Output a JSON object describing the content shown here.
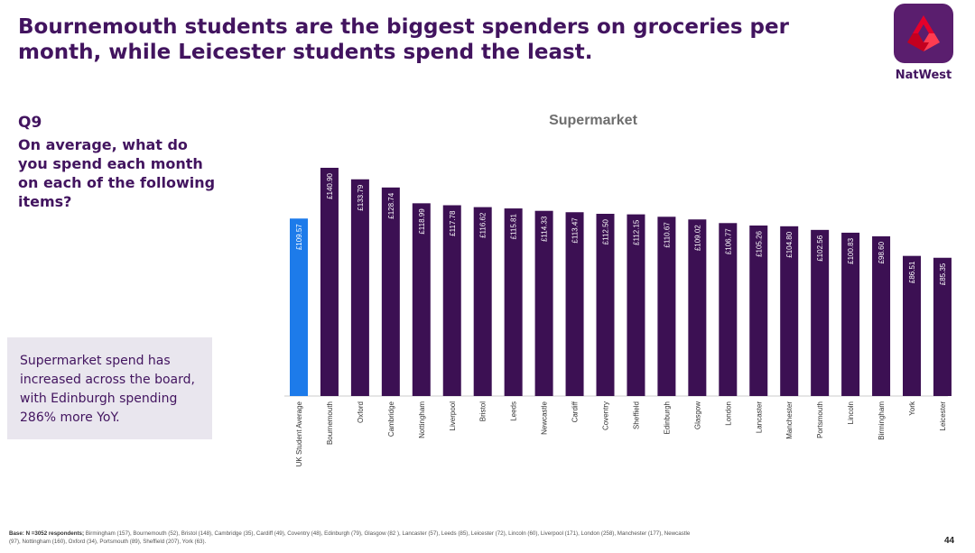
{
  "header": {
    "title": "Bournemouth students are the biggest spenders on groceries per month, while Leicester students spend the least.",
    "logo_text": "NatWest"
  },
  "question": {
    "number": "Q9",
    "text": "On average, what do you spend each month on each of the following items?"
  },
  "callout": {
    "text": "Supermarket spend has increased across the board, with Edinburgh spending 286% more YoY."
  },
  "colors": {
    "bar": "#3c1053",
    "highlight_bar": "#1d7bea",
    "text": "#42145f"
  },
  "chart_data": {
    "type": "bar",
    "title": "Supermarket",
    "xlabel": "",
    "ylabel": "",
    "ylim": [
      0,
      140.9
    ],
    "categories": [
      "UK Student Average",
      "Bournemouth",
      "Oxford",
      "Cambridge",
      "Nottingham",
      "Liverpool",
      "Bristol",
      "Leeds",
      "Newcastle",
      "Cardiff",
      "Coventry",
      "Sheffield",
      "Edinburgh",
      "Glasgow",
      "London",
      "Lancaster",
      "Manchester",
      "Portsmouth",
      "Lincoln",
      "Birmingham",
      "York",
      "Leicester"
    ],
    "values": [
      109.57,
      140.9,
      133.79,
      128.74,
      118.99,
      117.78,
      116.62,
      115.81,
      114.33,
      113.47,
      112.5,
      112.15,
      110.67,
      109.02,
      106.77,
      105.26,
      104.8,
      102.56,
      100.83,
      98.6,
      86.51,
      85.35
    ],
    "data_labels": [
      "£109.57",
      "£140.90",
      "£133.79",
      "£128.74",
      "£118.99",
      "£117.78",
      "£116.62",
      "£115.81",
      "£114.33",
      "£113.47",
      "£112.50",
      "£112.15",
      "£110.67",
      "£109.02",
      "£106.77",
      "£105.26",
      "£104.80",
      "£102.56",
      "£100.83",
      "£98.60",
      "£86.51",
      "£85.35"
    ],
    "highlight_index": 0,
    "grid": false,
    "legend": "none"
  },
  "footer": {
    "base_label": "Base: N =3052 respondents;",
    "base_text": "Birmingham (157),  Bournemouth (52), Bristol (148), Cambridge (35), Cardiff (49), Coventry (48),  Edinburgh (79), Glasgow (82 ), Lancaster (57), Leeds (85), Leicester (72), Lincoln (60), Liverpool (171), London (258), Manchester (177), Newcastle (97), Nottingham (160), Oxford (34), Portsmouth (89), Sheffield (207), York (63).",
    "page_number": "44"
  }
}
